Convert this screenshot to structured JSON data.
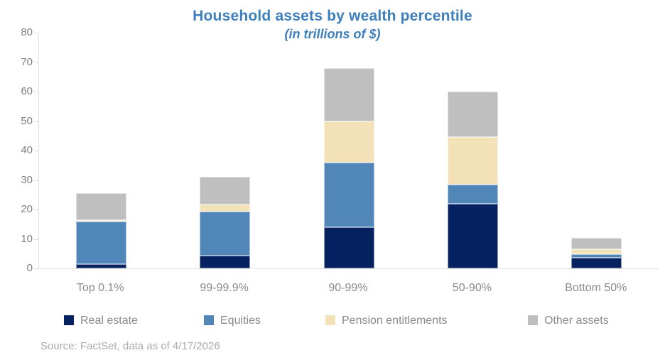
{
  "header": {
    "title": "Household assets by wealth percentile",
    "subtitle": "(in trillions of $)"
  },
  "footer": {
    "source": "Source: FactSet, data as of 4/17/2026"
  },
  "colors": {
    "title_blue": "#3d7ebd",
    "real_estate": "#062160",
    "equities": "#5086b8",
    "pension": "#f3e2b8",
    "other_assets": "#bfbfbf",
    "axis_line": "#e0e0e0",
    "axis_text": "#7f7f7f",
    "label_text": "#8a8a8a",
    "source_text": "#ababab"
  },
  "chart_data": {
    "type": "bar",
    "stacked": true,
    "title": "Household assets by wealth percentile",
    "subtitle": "(in trillions of $)",
    "xlabel": "",
    "ylabel": "",
    "units": "trillions of $",
    "categories": [
      "Top 0.1%",
      "99-99.9%",
      "90-99%",
      "50-90%",
      "Bottom 50%"
    ],
    "series": [
      {
        "name": "Real estate",
        "color": "#062160",
        "values": [
          1.5,
          4.3,
          14.0,
          22.0,
          3.5
        ]
      },
      {
        "name": "Equities",
        "color": "#5086b8",
        "values": [
          14.5,
          14.9,
          21.9,
          6.5,
          1.3
        ]
      },
      {
        "name": "Pension entitlements",
        "color": "#f3e2b8",
        "values": [
          0.5,
          2.6,
          14.1,
          16.2,
          1.7
        ]
      },
      {
        "name": "Other assets",
        "color": "#bfbfbf",
        "values": [
          9.0,
          9.4,
          18.0,
          15.4,
          3.8
        ]
      }
    ],
    "stack_totals": [
      25.5,
      31.2,
      68.0,
      60.1,
      10.3
    ],
    "ylim": [
      0,
      80
    ],
    "ytick_step": 10,
    "yticks": [
      0,
      10,
      20,
      30,
      40,
      50,
      60,
      70,
      80
    ],
    "grid": false,
    "legend_position": "bottom"
  }
}
